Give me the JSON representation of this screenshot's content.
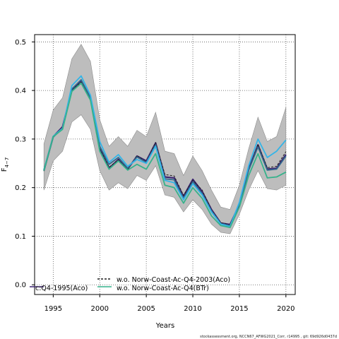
{
  "chart_data": {
    "type": "line",
    "xlabel": "Years",
    "ylabel_base": "F",
    "ylabel_sub": "4−7",
    "xlim": [
      1993,
      2021
    ],
    "ylim": [
      -0.02,
      0.515
    ],
    "xticks": [
      1995,
      2000,
      2005,
      2010,
      2015,
      2020
    ],
    "yticks": [
      0.0,
      0.1,
      0.2,
      0.3,
      0.4,
      0.5
    ],
    "ytick_labels": [
      "0.0",
      "0.1",
      "0.2",
      "0.3",
      "0.4",
      "0.5"
    ],
    "grid": true,
    "x": [
      1994,
      1995,
      1996,
      1997,
      1998,
      1999,
      2000,
      2001,
      2002,
      2003,
      2004,
      2005,
      2006,
      2007,
      2008,
      2009,
      2010,
      2011,
      2012,
      2013,
      2014,
      2015,
      2016,
      2017,
      2018,
      2019,
      2020
    ],
    "band": {
      "upper": [
        0.29,
        0.36,
        0.385,
        0.465,
        0.495,
        0.46,
        0.34,
        0.285,
        0.305,
        0.285,
        0.318,
        0.305,
        0.355,
        0.275,
        0.27,
        0.225,
        0.265,
        0.235,
        0.195,
        0.16,
        0.155,
        0.205,
        0.28,
        0.345,
        0.295,
        0.305,
        0.365
      ],
      "lower": [
        0.195,
        0.255,
        0.275,
        0.335,
        0.35,
        0.32,
        0.235,
        0.195,
        0.21,
        0.198,
        0.225,
        0.215,
        0.245,
        0.185,
        0.18,
        0.15,
        0.175,
        0.155,
        0.125,
        0.108,
        0.105,
        0.145,
        0.195,
        0.235,
        0.198,
        0.195,
        0.205
      ]
    },
    "series": [
      {
        "color": "#3b2470",
        "dash": "none",
        "width": 2.2,
        "values": [
          0.235,
          0.305,
          0.325,
          0.4,
          0.42,
          0.385,
          0.28,
          0.24,
          0.258,
          0.238,
          0.265,
          0.255,
          0.292,
          0.222,
          0.22,
          0.182,
          0.217,
          0.192,
          0.155,
          0.127,
          0.124,
          0.165,
          0.238,
          0.288,
          0.238,
          0.24,
          0.268
        ]
      },
      {
        "color": "#1e1e1e",
        "dash": "3,2",
        "width": 1.0,
        "values": [
          0.234,
          0.305,
          0.323,
          0.402,
          0.417,
          0.383,
          0.282,
          0.242,
          0.257,
          0.237,
          0.266,
          0.253,
          0.293,
          0.227,
          0.224,
          0.184,
          0.215,
          0.195,
          0.154,
          0.128,
          0.123,
          0.167,
          0.237,
          0.289,
          0.241,
          0.244,
          0.274
        ]
      },
      {
        "color": "#31688e",
        "dash": "none",
        "width": 1.8,
        "values": [
          0.237,
          0.304,
          0.322,
          0.403,
          0.422,
          0.385,
          0.285,
          0.248,
          0.262,
          0.24,
          0.263,
          0.252,
          0.288,
          0.218,
          0.216,
          0.178,
          0.212,
          0.188,
          0.152,
          0.126,
          0.122,
          0.168,
          0.236,
          0.284,
          0.236,
          0.238,
          0.265
        ]
      },
      {
        "color": "#33b5e8",
        "dash": "none",
        "width": 1.8,
        "values": [
          0.236,
          0.306,
          0.322,
          0.41,
          0.43,
          0.39,
          0.295,
          0.252,
          0.268,
          0.244,
          0.258,
          0.25,
          0.285,
          0.215,
          0.21,
          0.175,
          0.208,
          0.185,
          0.15,
          0.125,
          0.12,
          0.17,
          0.245,
          0.3,
          0.262,
          0.275,
          0.298
        ]
      },
      {
        "color": "#35b28b",
        "dash": "none",
        "width": 1.8,
        "values": [
          0.235,
          0.305,
          0.32,
          0.398,
          0.415,
          0.38,
          0.275,
          0.238,
          0.255,
          0.236,
          0.248,
          0.238,
          0.27,
          0.205,
          0.2,
          0.168,
          0.2,
          0.178,
          0.142,
          0.122,
          0.118,
          0.16,
          0.225,
          0.27,
          0.22,
          0.222,
          0.232
        ]
      }
    ],
    "legend": [
      {
        "label": "c:Q4-1995(Aco)",
        "color": "#3b2470",
        "dash": "none"
      },
      {
        "label": "w.o. Norw-Coast-Ac-Q4-2003(Aco)",
        "color": "#1e1e1e",
        "dash": "3,2"
      },
      {
        "label": "w.o. Norw-Coast-Ac-Q4(BTr)",
        "color": "#35b28b",
        "dash": "none"
      }
    ],
    "legend_position": "bottom-left"
  },
  "footer": "stockassessment.org, NCCN67_AFWG2021_Corr, r14995 , git: 69d926d0437d"
}
